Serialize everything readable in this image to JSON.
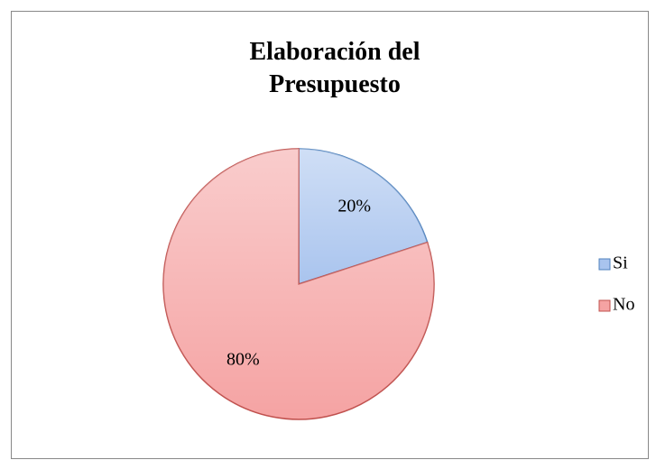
{
  "chart_data": {
    "type": "pie",
    "title": "Elaboración del Presupuesto",
    "categories": [
      "Si",
      "No"
    ],
    "values": [
      20,
      80
    ],
    "value_labels": [
      "20%",
      "80%"
    ],
    "colors": [
      "#a9c4ee",
      "#f5a3a3"
    ],
    "edge_colors": [
      "#4f81bd",
      "#c0504d"
    ],
    "legend": "right"
  }
}
